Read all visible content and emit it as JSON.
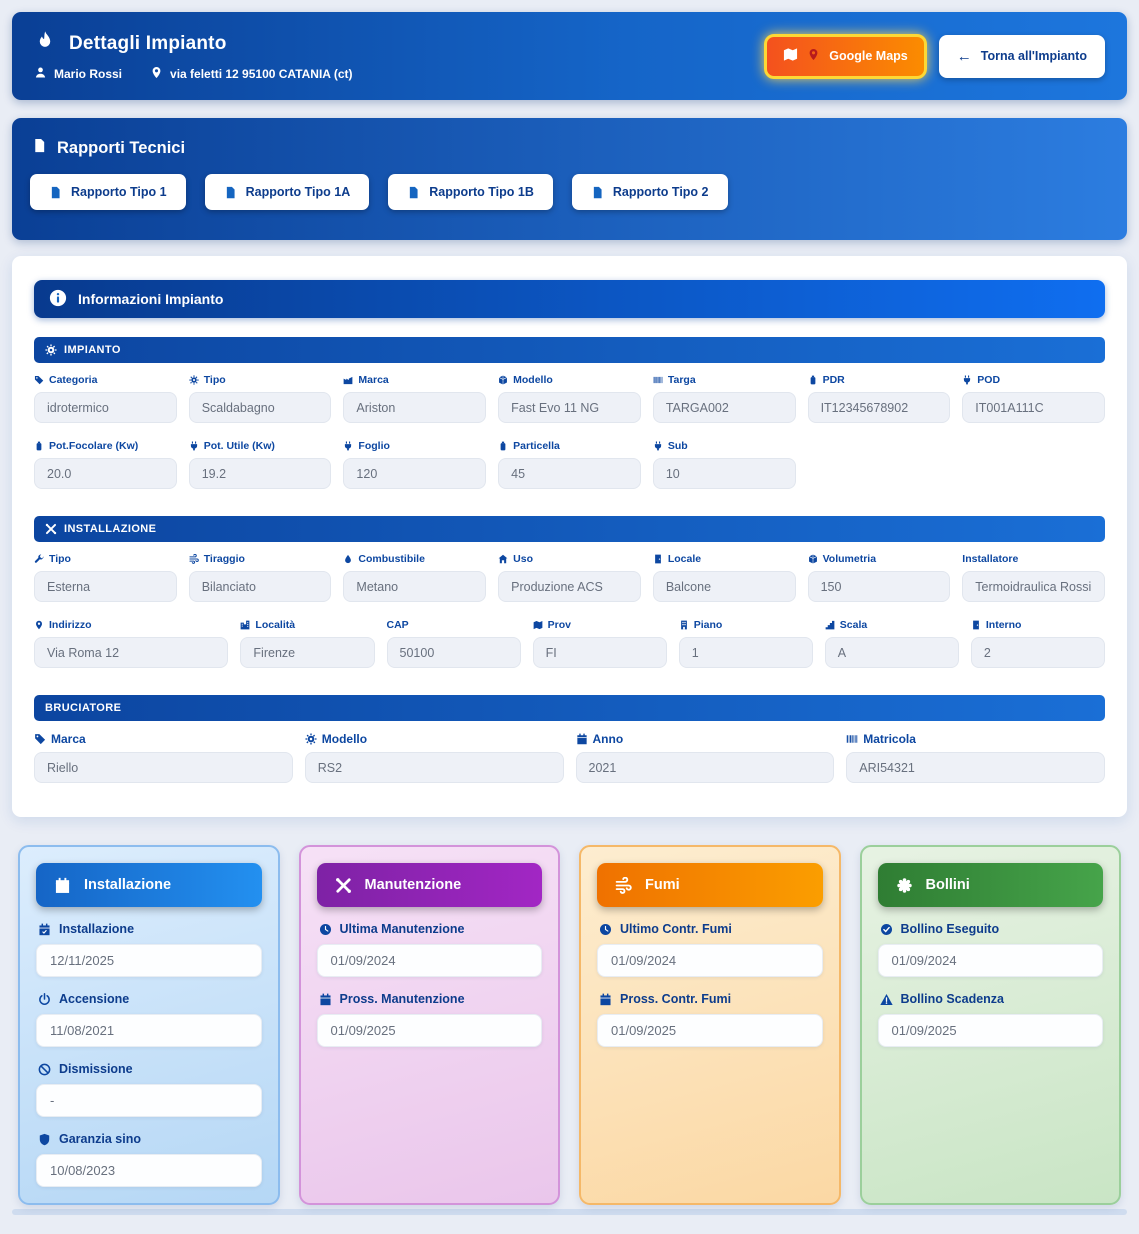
{
  "header": {
    "title": "Dettagli Impianto",
    "title_icon": "flame",
    "user": "Mario Rossi",
    "user_icon": "person",
    "address": "via feletti 12 95100 CATANIA (ct)",
    "address_icon": "pin",
    "buttons": {
      "maps": "Google Maps",
      "maps_icons": [
        "map",
        "pin"
      ],
      "back": "Torna all'Impianto",
      "back_icon": "arrow-left"
    }
  },
  "reports": {
    "title": "Rapporti Tecnici",
    "title_icon": "doc",
    "buttons": [
      "Rapporto Tipo 1",
      "Rapporto Tipo 1A",
      "Rapporto Tipo 1B",
      "Rapporto Tipo 2"
    ]
  },
  "info": {
    "title": "Informazioni Impianto",
    "title_icon": "info",
    "sections": [
      {
        "title": "IMPIANTO",
        "icon": "gear",
        "rows": [
          [
            {
              "icon": "tag",
              "label": "Categoria",
              "value": "idrotermico"
            },
            {
              "icon": "gear",
              "label": "Tipo",
              "value": "Scaldabagno"
            },
            {
              "icon": "industry",
              "label": "Marca",
              "value": "Ariston"
            },
            {
              "icon": "cube",
              "label": "Modello",
              "value": "Fast Evo 11 NG"
            },
            {
              "icon": "barcode",
              "label": "Targa",
              "value": "TARGA002"
            },
            {
              "icon": "tank",
              "label": "PDR",
              "value": "IT12345678902"
            },
            {
              "icon": "plug",
              "label": "POD",
              "value": "IT001A111C"
            }
          ],
          [
            {
              "icon": "tank",
              "label": "Pot.Focolare (Kw)",
              "value": "20.0"
            },
            {
              "icon": "plug",
              "label": "Pot. Utile (Kw)",
              "value": "19.2"
            },
            {
              "icon": "plug",
              "label": "Foglio",
              "value": "120"
            },
            {
              "icon": "tank",
              "label": "Particella",
              "value": "45"
            },
            {
              "icon": "plug",
              "label": "Sub",
              "value": "10"
            }
          ]
        ]
      },
      {
        "title": "INSTALLAZIONE",
        "icon": "tools",
        "rows": [
          [
            {
              "icon": "wrench",
              "label": "Tipo",
              "value": "Esterna"
            },
            {
              "icon": "wind",
              "label": "Tiraggio",
              "value": "Bilanciato"
            },
            {
              "icon": "oil",
              "label": "Combustibile",
              "value": "Metano"
            },
            {
              "icon": "home",
              "label": "Uso",
              "value": "Produzione ACS"
            },
            {
              "icon": "door",
              "label": "Locale",
              "value": "Balcone"
            },
            {
              "icon": "cube",
              "label": "Volumetria",
              "value": "150"
            },
            {
              "icon": null,
              "label": "Installatore",
              "value": "Termoidraulica Rossi"
            }
          ],
          [
            {
              "icon": "pin",
              "label": "Indirizzo",
              "value": "Via Roma 12",
              "wide": true
            },
            {
              "icon": "city",
              "label": "Località",
              "value": "Firenze"
            },
            {
              "icon": null,
              "label": "CAP",
              "value": "50100"
            },
            {
              "icon": "map",
              "label": "Prov",
              "value": "FI"
            },
            {
              "icon": "building",
              "label": "Piano",
              "value": "1"
            },
            {
              "icon": "stairs",
              "label": "Scala",
              "value": "A"
            },
            {
              "icon": "door",
              "label": "Interno",
              "value": "2"
            }
          ]
        ]
      },
      {
        "title": "BRUCIATORE",
        "icon": null,
        "rows": [
          [
            {
              "icon": "tag",
              "label": "Marca",
              "value": "Riello"
            },
            {
              "icon": "gear",
              "label": "Modello",
              "value": "RS2"
            },
            {
              "icon": "calendar",
              "label": "Anno",
              "value": "2021"
            },
            {
              "icon": "barcode",
              "label": "Matricola",
              "value": "ARI54321"
            }
          ]
        ]
      }
    ]
  },
  "cards": [
    {
      "key": "installazione",
      "title": "Installazione",
      "icon": "calendar-plus",
      "accent": "#1e88e5",
      "fields": [
        {
          "icon": "calendar-check",
          "label": "Installazione",
          "value": "12/11/2025"
        },
        {
          "icon": "power",
          "label": "Accensione",
          "value": "11/08/2021"
        },
        {
          "icon": "ban",
          "label": "Dismissione",
          "value": "-"
        },
        {
          "icon": "shield",
          "label": "Garanzia sino",
          "value": "10/08/2023"
        }
      ]
    },
    {
      "key": "manutenzione",
      "title": "Manutenzione",
      "icon": "tools",
      "accent": "#9c27b0",
      "fields": [
        {
          "icon": "clock",
          "label": "Ultima Manutenzione",
          "value": "01/09/2024"
        },
        {
          "icon": "calendar",
          "label": "Pross. Manutenzione",
          "value": "01/09/2025"
        }
      ]
    },
    {
      "key": "fumi",
      "title": "Fumi",
      "icon": "wind",
      "accent": "#fb8c00",
      "fields": [
        {
          "icon": "clock",
          "label": "Ultimo Contr. Fumi",
          "value": "01/09/2024"
        },
        {
          "icon": "calendar",
          "label": "Pross. Contr. Fumi",
          "value": "01/09/2025"
        }
      ]
    },
    {
      "key": "bollini",
      "title": "Bollini",
      "icon": "seal",
      "accent": "#43a047",
      "fields": [
        {
          "icon": "check-circle",
          "label": "Bollino Eseguito",
          "value": "01/09/2024"
        },
        {
          "icon": "warning",
          "label": "Bollino Scadenza",
          "value": "01/09/2025"
        }
      ]
    }
  ],
  "colors": {
    "primary_dark": "#0a3f95",
    "primary": "#1565c0",
    "primary_light": "#1d76dd",
    "maps_gradient": [
      "#f4511e",
      "#fb8c00"
    ],
    "maps_border": "#fdd835",
    "label_navy": "#0d47a1",
    "value_gray": "#68707e",
    "page_bg": "#e9edf5"
  }
}
